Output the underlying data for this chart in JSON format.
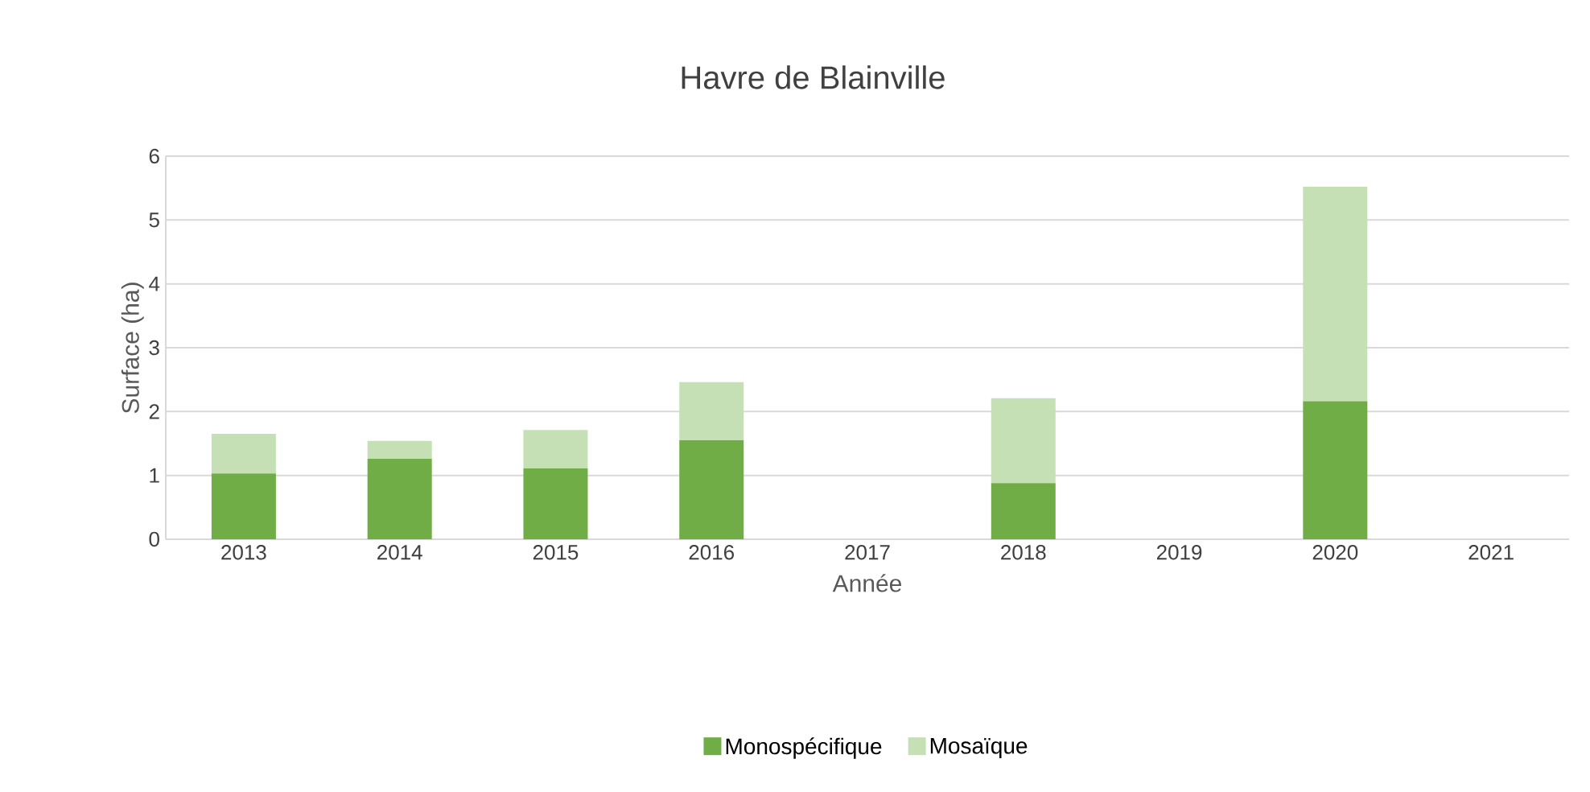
{
  "chart_data": {
    "type": "bar",
    "title": "Havre de Blainville",
    "xlabel": "Année",
    "ylabel": "Surface (ha)",
    "categories": [
      "2013",
      "2014",
      "2015",
      "2016",
      "2017",
      "2018",
      "2019",
      "2020",
      "2021"
    ],
    "stacked": true,
    "series": [
      {
        "name": "Monospécifique",
        "color": "#70ad47",
        "values": [
          1.03,
          1.26,
          1.11,
          1.55,
          null,
          0.88,
          null,
          2.16,
          null
        ]
      },
      {
        "name": "Mosaïque",
        "color": "#c5e0b4",
        "values": [
          0.62,
          0.28,
          0.6,
          0.91,
          null,
          1.33,
          null,
          3.36,
          null
        ]
      }
    ],
    "ylim": [
      0,
      6
    ],
    "yticks": [
      0,
      1,
      2,
      3,
      4,
      5,
      6
    ],
    "grid": "y",
    "legend": "bottom"
  }
}
